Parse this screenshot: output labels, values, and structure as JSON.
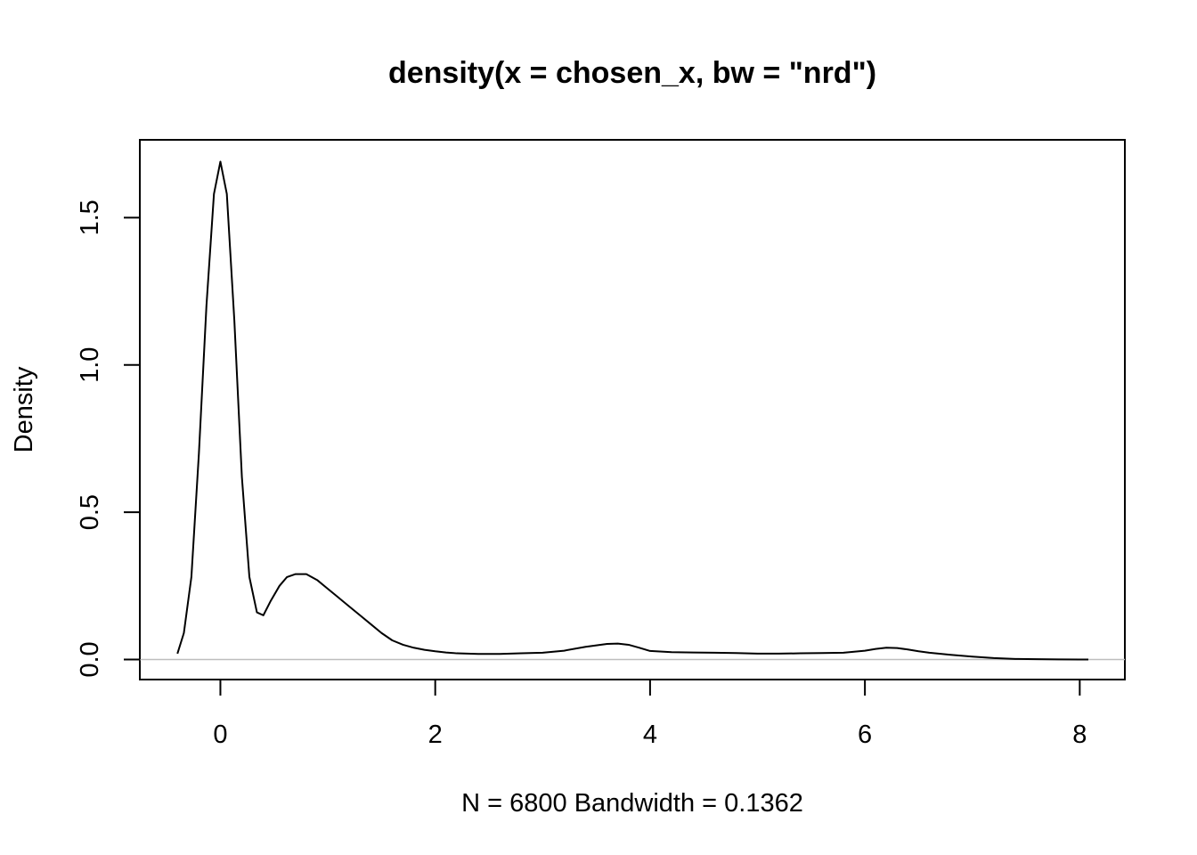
{
  "chart_data": {
    "type": "line",
    "title": "density(x = chosen_x, bw = \"nrd\")",
    "xlabel": "N = 6800   Bandwidth = 0.1362",
    "ylabel": "Density",
    "xlim": [
      -0.75,
      8.42
    ],
    "ylim": [
      -0.068,
      1.764
    ],
    "x_ticks": [
      0,
      2,
      4,
      6,
      8
    ],
    "x_tick_labels": [
      "0",
      "2",
      "4",
      "6",
      "8"
    ],
    "y_ticks": [
      0.0,
      0.5,
      1.0,
      1.5
    ],
    "y_tick_labels": [
      "0.0",
      "0.5",
      "1.0",
      "1.5"
    ],
    "zero_line": true,
    "zero_line_color": "#bebebe",
    "line_color": "#000000",
    "grid": false,
    "legend": "none",
    "series": [
      {
        "x": [
          -0.4,
          -0.34,
          -0.27,
          -0.2,
          -0.13,
          -0.06,
          0.0,
          0.06,
          0.13,
          0.2,
          0.27,
          0.34,
          0.4,
          0.47,
          0.55,
          0.62,
          0.7,
          0.8,
          0.9,
          1.0,
          1.1,
          1.2,
          1.3,
          1.4,
          1.5,
          1.6,
          1.7,
          1.8,
          1.9,
          2.0,
          2.1,
          2.2,
          2.4,
          2.6,
          2.8,
          3.0,
          3.2,
          3.4,
          3.6,
          3.7,
          3.8,
          3.9,
          4.0,
          4.2,
          4.4,
          4.6,
          4.8,
          5.0,
          5.2,
          5.4,
          5.6,
          5.8,
          6.0,
          6.1,
          6.2,
          6.3,
          6.4,
          6.5,
          6.6,
          6.8,
          7.0,
          7.2,
          7.4,
          7.6,
          7.8,
          8.0,
          8.08
        ],
        "y": [
          0.02,
          0.09,
          0.28,
          0.7,
          1.2,
          1.58,
          1.69,
          1.58,
          1.15,
          0.62,
          0.28,
          0.16,
          0.15,
          0.2,
          0.25,
          0.28,
          0.29,
          0.29,
          0.27,
          0.24,
          0.21,
          0.18,
          0.15,
          0.12,
          0.09,
          0.065,
          0.05,
          0.04,
          0.033,
          0.028,
          0.024,
          0.021,
          0.019,
          0.019,
          0.021,
          0.023,
          0.03,
          0.043,
          0.053,
          0.054,
          0.05,
          0.04,
          0.029,
          0.025,
          0.024,
          0.023,
          0.022,
          0.02,
          0.02,
          0.021,
          0.022,
          0.023,
          0.03,
          0.036,
          0.04,
          0.039,
          0.034,
          0.028,
          0.023,
          0.016,
          0.01,
          0.005,
          0.002,
          0.001,
          0.0005,
          0.0002,
          0.0001
        ]
      }
    ]
  }
}
